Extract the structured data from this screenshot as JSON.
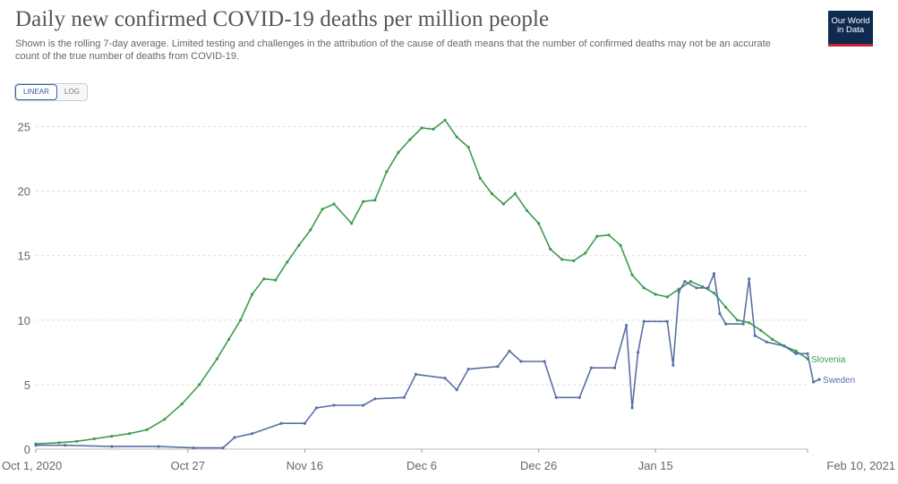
{
  "header": {
    "title": "Daily new confirmed COVID-19 deaths per million people",
    "subtitle": "Shown is the rolling 7-day average. Limited testing and challenges in the attribution of the cause of death means that the number of confirmed deaths may not be an accurate count of the true number of deaths from COVID-19.",
    "logo_line1": "Our World",
    "logo_line2": "in Data"
  },
  "controls": {
    "linear_label": "LINEAR",
    "log_label": "LOG",
    "active": "linear"
  },
  "colors": {
    "slovenia": "#3c9c4f",
    "sweden": "#5a6fa6",
    "grid": "#dddddd",
    "logo_bg": "#0e2a4e",
    "logo_accent": "#c8223a"
  },
  "chart_data": {
    "type": "line",
    "title": "Daily new confirmed COVID-19 deaths per million people",
    "xlabel": "",
    "ylabel": "",
    "x_start": "2020-10-01",
    "x_end": "2021-02-10",
    "xlim": [
      "2020-10-01",
      "2021-02-10"
    ],
    "ylim": [
      0,
      25.8
    ],
    "yticks": [
      0,
      5,
      10,
      15,
      20,
      25
    ],
    "xtick_labels": [
      "Oct 1, 2020",
      "Oct 27",
      "Nov 16",
      "Dec 6",
      "Dec 26",
      "Jan 15",
      "Feb 10, 2021"
    ],
    "xtick_dates": [
      "2020-10-01",
      "2020-10-27",
      "2020-11-16",
      "2020-12-06",
      "2020-12-26",
      "2021-01-15",
      "2021-02-10"
    ],
    "grid": true,
    "legend": "end-of-line labels",
    "series": [
      {
        "name": "Slovenia",
        "color": "#3c9c4f",
        "points": [
          [
            "2020-10-01",
            0.4
          ],
          [
            "2020-10-05",
            0.5
          ],
          [
            "2020-10-08",
            0.6
          ],
          [
            "2020-10-11",
            0.8
          ],
          [
            "2020-10-14",
            1.0
          ],
          [
            "2020-10-17",
            1.2
          ],
          [
            "2020-10-20",
            1.5
          ],
          [
            "2020-10-23",
            2.3
          ],
          [
            "2020-10-26",
            3.5
          ],
          [
            "2020-10-29",
            5.0
          ],
          [
            "2020-11-01",
            7.0
          ],
          [
            "2020-11-03",
            8.5
          ],
          [
            "2020-11-05",
            10.0
          ],
          [
            "2020-11-07",
            12.0
          ],
          [
            "2020-11-09",
            13.2
          ],
          [
            "2020-11-11",
            13.1
          ],
          [
            "2020-11-13",
            14.5
          ],
          [
            "2020-11-15",
            15.8
          ],
          [
            "2020-11-17",
            17.0
          ],
          [
            "2020-11-19",
            18.6
          ],
          [
            "2020-11-21",
            19.0
          ],
          [
            "2020-11-24",
            17.5
          ],
          [
            "2020-11-26",
            19.2
          ],
          [
            "2020-11-28",
            19.3
          ],
          [
            "2020-11-30",
            21.5
          ],
          [
            "2020-12-02",
            23.0
          ],
          [
            "2020-12-04",
            24.0
          ],
          [
            "2020-12-06",
            24.9
          ],
          [
            "2020-12-08",
            24.8
          ],
          [
            "2020-12-10",
            25.5
          ],
          [
            "2020-12-12",
            24.2
          ],
          [
            "2020-12-14",
            23.4
          ],
          [
            "2020-12-16",
            21.0
          ],
          [
            "2020-12-18",
            19.8
          ],
          [
            "2020-12-20",
            19.0
          ],
          [
            "2020-12-22",
            19.8
          ],
          [
            "2020-12-24",
            18.5
          ],
          [
            "2020-12-26",
            17.5
          ],
          [
            "2020-12-28",
            15.5
          ],
          [
            "2020-12-30",
            14.7
          ],
          [
            "2021-01-01",
            14.6
          ],
          [
            "2021-01-03",
            15.2
          ],
          [
            "2021-01-05",
            16.5
          ],
          [
            "2021-01-07",
            16.6
          ],
          [
            "2021-01-09",
            15.8
          ],
          [
            "2021-01-11",
            13.5
          ],
          [
            "2021-01-13",
            12.5
          ],
          [
            "2021-01-15",
            12.0
          ],
          [
            "2021-01-17",
            11.8
          ],
          [
            "2021-01-19",
            12.4
          ],
          [
            "2021-01-21",
            13.0
          ],
          [
            "2021-01-23",
            12.6
          ],
          [
            "2021-01-25",
            12.1
          ],
          [
            "2021-01-27",
            11.0
          ],
          [
            "2021-01-29",
            10.0
          ],
          [
            "2021-01-31",
            9.8
          ],
          [
            "2021-02-02",
            9.2
          ],
          [
            "2021-02-04",
            8.5
          ],
          [
            "2021-02-06",
            8.0
          ],
          [
            "2021-02-08",
            7.6
          ],
          [
            "2021-02-10",
            7.0
          ]
        ]
      },
      {
        "name": "Sweden",
        "color": "#5a6fa6",
        "points": [
          [
            "2020-10-01",
            0.3
          ],
          [
            "2020-10-06",
            0.3
          ],
          [
            "2020-10-14",
            0.2
          ],
          [
            "2020-10-22",
            0.2
          ],
          [
            "2020-10-28",
            0.1
          ],
          [
            "2020-11-02",
            0.1
          ],
          [
            "2020-11-04",
            0.9
          ],
          [
            "2020-11-07",
            1.2
          ],
          [
            "2020-11-12",
            2.0
          ],
          [
            "2020-11-16",
            2.0
          ],
          [
            "2020-11-18",
            3.2
          ],
          [
            "2020-11-21",
            3.4
          ],
          [
            "2020-11-26",
            3.4
          ],
          [
            "2020-11-28",
            3.9
          ],
          [
            "2020-12-03",
            4.0
          ],
          [
            "2020-12-05",
            5.8
          ],
          [
            "2020-12-10",
            5.5
          ],
          [
            "2020-12-12",
            4.6
          ],
          [
            "2020-12-14",
            6.2
          ],
          [
            "2020-12-19",
            6.4
          ],
          [
            "2020-12-21",
            7.6
          ],
          [
            "2020-12-23",
            6.8
          ],
          [
            "2020-12-27",
            6.8
          ],
          [
            "2020-12-29",
            4.0
          ],
          [
            "2021-01-02",
            4.0
          ],
          [
            "2021-01-04",
            6.3
          ],
          [
            "2021-01-08",
            6.3
          ],
          [
            "2021-01-10",
            9.6
          ],
          [
            "2021-01-11",
            3.2
          ],
          [
            "2021-01-12",
            7.5
          ],
          [
            "2021-01-13",
            9.9
          ],
          [
            "2021-01-17",
            9.9
          ],
          [
            "2021-01-18",
            6.5
          ],
          [
            "2021-01-19",
            12.2
          ],
          [
            "2021-01-20",
            13.0
          ],
          [
            "2021-01-22",
            12.5
          ],
          [
            "2021-01-24",
            12.5
          ],
          [
            "2021-01-25",
            13.6
          ],
          [
            "2021-01-26",
            10.5
          ],
          [
            "2021-01-27",
            9.7
          ],
          [
            "2021-01-30",
            9.7
          ],
          [
            "2021-01-31",
            13.2
          ],
          [
            "2021-02-01",
            8.8
          ],
          [
            "2021-02-03",
            8.3
          ],
          [
            "2021-02-06",
            8.0
          ],
          [
            "2021-02-08",
            7.4
          ],
          [
            "2021-02-10",
            7.4
          ],
          [
            "2021-02-11",
            5.2
          ],
          [
            "2021-02-12",
            5.4
          ]
        ]
      }
    ]
  }
}
